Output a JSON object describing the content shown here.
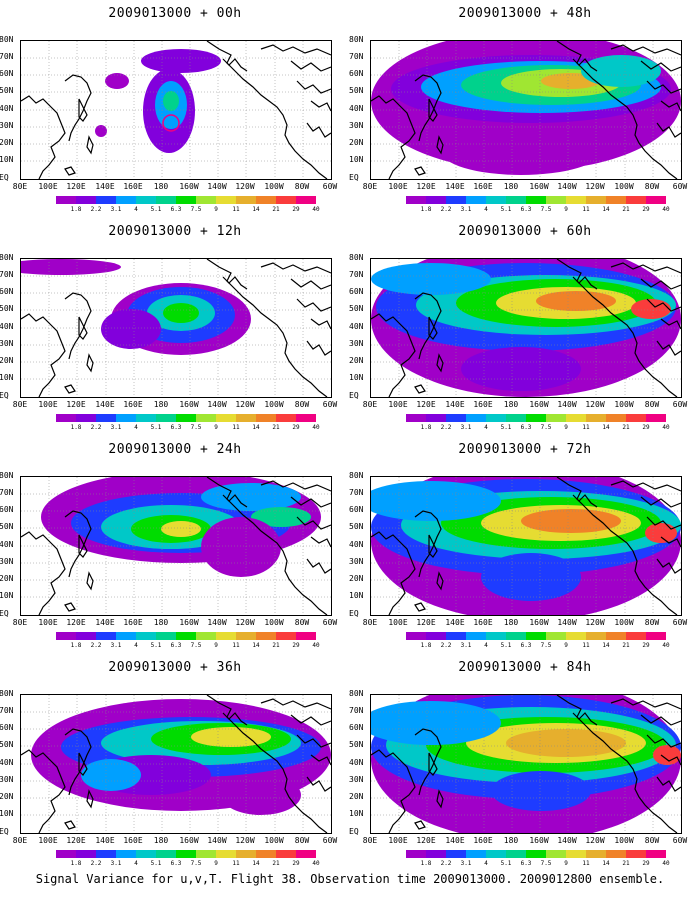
{
  "panels": [
    {
      "title": "2009013000 + 00h"
    },
    {
      "title": "2009013000 + 48h"
    },
    {
      "title": "2009013000 + 12h"
    },
    {
      "title": "2009013000 + 60h"
    },
    {
      "title": "2009013000 + 24h"
    },
    {
      "title": "2009013000 + 72h"
    },
    {
      "title": "2009013000 + 36h"
    },
    {
      "title": "2009013000 + 84h"
    }
  ],
  "lat_labels": [
    "80N",
    "70N",
    "60N",
    "50N",
    "40N",
    "30N",
    "20N",
    "10N",
    "EQ"
  ],
  "lon_labels": [
    "80E",
    "100E",
    "120E",
    "140E",
    "160E",
    "180",
    "160W",
    "140W",
    "120W",
    "100W",
    "80W",
    "60W"
  ],
  "colorbar": {
    "colors": [
      "#a000c8",
      "#8200dc",
      "#1e3cff",
      "#00a0ff",
      "#00c8c8",
      "#00d28c",
      "#00dc00",
      "#a0e632",
      "#e6dc32",
      "#e6af2d",
      "#f08228",
      "#fa3c3c",
      "#f00082"
    ],
    "labels": [
      "1.8",
      "2.2",
      "3.1",
      "4",
      "5.1",
      "6.3",
      "7.5",
      "9",
      "11",
      "14",
      "21",
      "29",
      "40"
    ]
  },
  "caption": "Signal Variance for u,v,T. Flight 38. Observation time 2009013000. 2009012800 ensemble."
}
